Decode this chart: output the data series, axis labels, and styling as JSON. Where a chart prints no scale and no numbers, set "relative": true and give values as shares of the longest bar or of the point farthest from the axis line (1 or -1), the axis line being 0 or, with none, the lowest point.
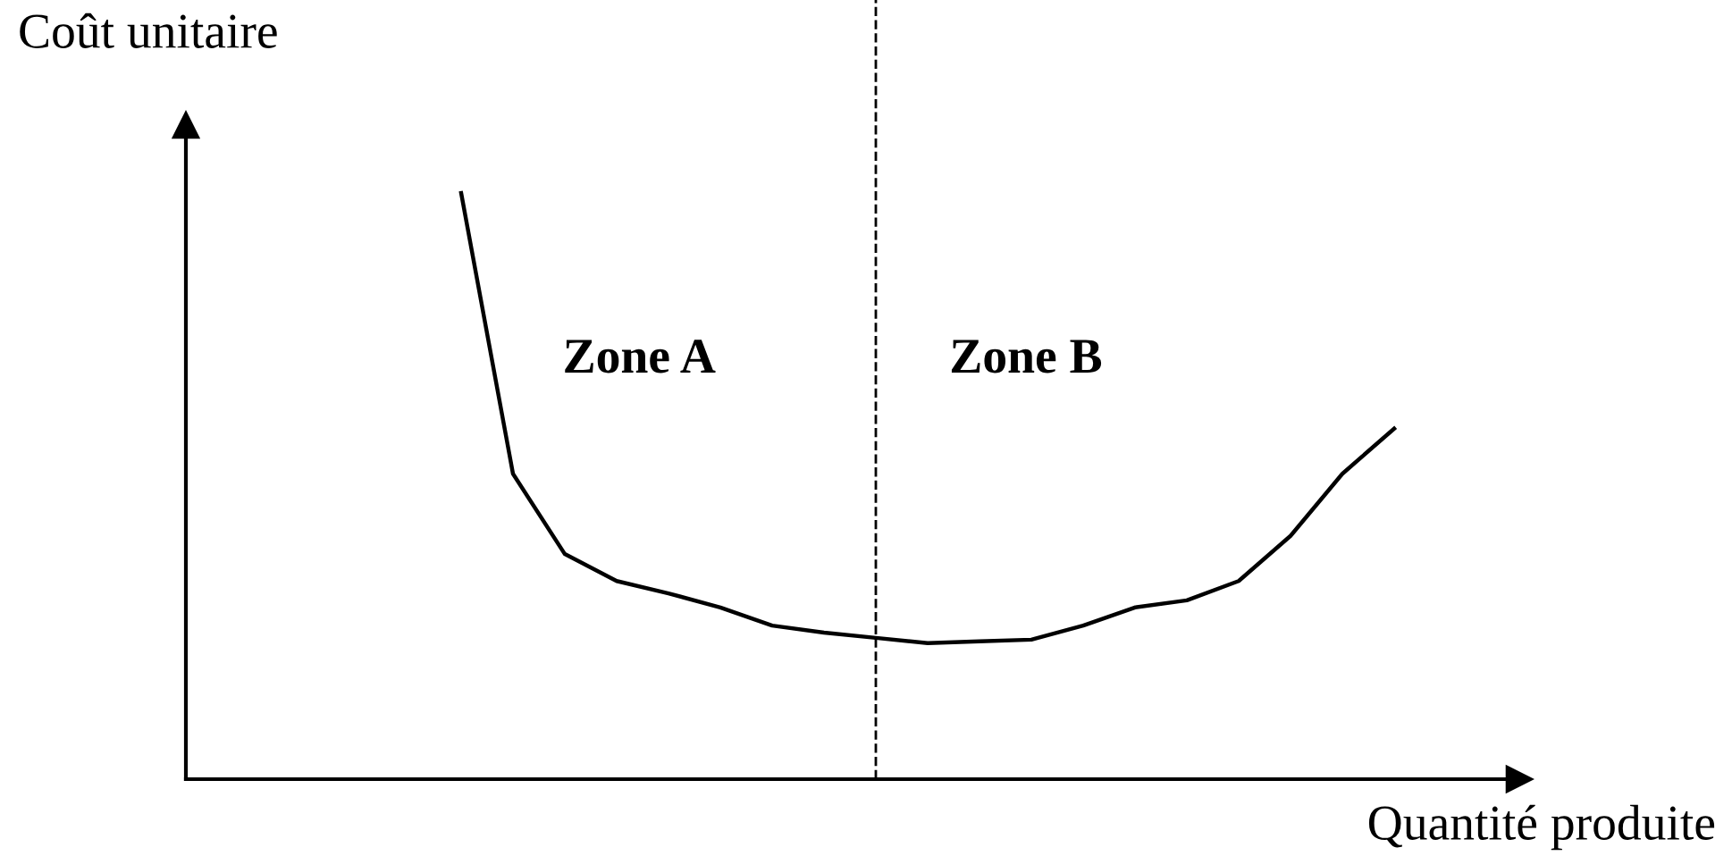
{
  "chart_data": {
    "type": "line",
    "relative": true,
    "xlabel": "Quantité produite",
    "ylabel": "Coût unitaire",
    "categories": [
      null,
      null,
      null,
      null,
      null,
      null,
      null,
      null,
      null,
      null,
      null,
      null,
      null,
      null,
      null,
      null,
      null,
      null,
      null
    ],
    "series": [
      {
        "color": "#000000",
        "values": [
          1.0,
          0.521,
          0.384,
          0.338,
          0.317,
          0.293,
          0.262,
          0.25,
          0.241,
          0.232,
          0.235,
          0.238,
          0.262,
          0.293,
          0.305,
          0.338,
          0.415,
          0.521,
          0.598
        ]
      }
    ],
    "annotations": [
      "Zone A",
      "Zone B"
    ],
    "grid": false,
    "marker": "none",
    "line_style": "solid"
  }
}
